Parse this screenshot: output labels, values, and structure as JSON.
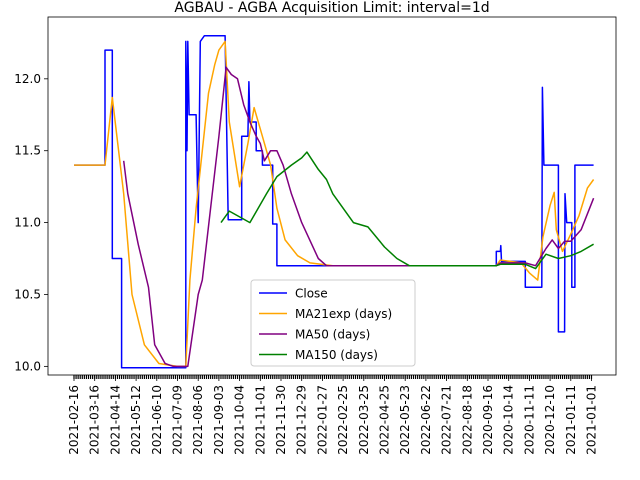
{
  "chart_data": {
    "type": "line",
    "title": "AGBAU - AGBA Acquisition Limit: interval=1d",
    "xlabel": "",
    "ylabel": "",
    "ylim": [
      9.94,
      12.43
    ],
    "y_ticks": [
      10.0,
      10.5,
      11.0,
      11.5,
      12.0
    ],
    "y_tick_labels": [
      "10.0",
      "10.5",
      "11.0",
      "11.5",
      "12.0"
    ],
    "x_tick_labels": [
      "2021-02-16",
      "2021-03-16",
      "2021-04-14",
      "2021-05-12",
      "2021-06-10",
      "2021-07-09",
      "2021-08-06",
      "2021-09-03",
      "2021-10-04",
      "2021-11-01",
      "2021-11-30",
      "2021-12-29",
      "2022-01-27",
      "2022-02-25",
      "2022-03-25",
      "2022-04-25",
      "2022-05-23",
      "2022-06-22",
      "2022-07-21",
      "2022-08-18",
      "2020-09-16",
      "2020-10-14",
      "2020-11-11",
      "2020-12-10",
      "2021-01-11",
      "2021-01-01"
    ],
    "grid": false,
    "legend_position": "bottom-center",
    "series": [
      {
        "name": "Close",
        "color": "#0000ff",
        "points": [
          [
            0,
            11.4
          ],
          [
            1.5,
            11.4
          ],
          [
            1.5,
            12.2
          ],
          [
            1.85,
            12.2
          ],
          [
            1.85,
            10.75
          ],
          [
            2.3,
            10.75
          ],
          [
            2.3,
            9.99
          ],
          [
            5.4,
            9.99
          ],
          [
            5.4,
            12.26
          ],
          [
            5.46,
            11.5
          ],
          [
            5.5,
            12.26
          ],
          [
            5.56,
            11.75
          ],
          [
            5.9,
            11.75
          ],
          [
            6.0,
            11.0
          ],
          [
            6.1,
            12.26
          ],
          [
            6.3,
            12.3
          ],
          [
            7.3,
            12.3
          ],
          [
            7.45,
            11.02
          ],
          [
            8.1,
            11.02
          ],
          [
            8.1,
            11.6
          ],
          [
            8.4,
            11.6
          ],
          [
            8.45,
            11.98
          ],
          [
            8.5,
            11.7
          ],
          [
            8.8,
            11.7
          ],
          [
            8.8,
            11.5
          ],
          [
            9.1,
            11.5
          ],
          [
            9.1,
            11.4
          ],
          [
            9.6,
            11.4
          ],
          [
            9.6,
            10.99
          ],
          [
            9.8,
            10.99
          ],
          [
            9.8,
            10.7
          ],
          [
            20.4,
            10.7
          ],
          [
            20.4,
            10.8
          ],
          [
            20.6,
            10.8
          ],
          [
            20.62,
            10.84
          ],
          [
            20.65,
            10.73
          ],
          [
            21.8,
            10.73
          ],
          [
            21.8,
            10.55
          ],
          [
            22.6,
            10.55
          ],
          [
            22.63,
            11.94
          ],
          [
            22.7,
            11.4
          ],
          [
            23.4,
            11.4
          ],
          [
            23.4,
            10.24
          ],
          [
            23.7,
            10.24
          ],
          [
            23.72,
            11.2
          ],
          [
            23.8,
            11.0
          ],
          [
            24.05,
            11.0
          ],
          [
            24.05,
            10.55
          ],
          [
            24.2,
            10.55
          ],
          [
            24.2,
            11.4
          ],
          [
            25.1,
            11.4
          ]
        ]
      },
      {
        "name": "MA21exp (days)",
        "color": "#ffa500",
        "points": [
          [
            0,
            11.4
          ],
          [
            1.5,
            11.4
          ],
          [
            1.85,
            11.87
          ],
          [
            2.4,
            11.2
          ],
          [
            2.8,
            10.5
          ],
          [
            3.4,
            10.15
          ],
          [
            4.1,
            10.02
          ],
          [
            5.0,
            10.0
          ],
          [
            5.4,
            10.0
          ],
          [
            5.6,
            10.6
          ],
          [
            5.9,
            11.1
          ],
          [
            6.2,
            11.5
          ],
          [
            6.5,
            11.9
          ],
          [
            6.8,
            12.1
          ],
          [
            7.0,
            12.2
          ],
          [
            7.3,
            12.26
          ],
          [
            7.5,
            11.7
          ],
          [
            8.0,
            11.25
          ],
          [
            8.4,
            11.55
          ],
          [
            8.7,
            11.8
          ],
          [
            9.1,
            11.6
          ],
          [
            9.5,
            11.4
          ],
          [
            9.8,
            11.1
          ],
          [
            10.2,
            10.88
          ],
          [
            10.8,
            10.77
          ],
          [
            11.4,
            10.72
          ],
          [
            12.5,
            10.7
          ],
          [
            20.4,
            10.7
          ],
          [
            20.6,
            10.74
          ],
          [
            21.6,
            10.72
          ],
          [
            22.0,
            10.65
          ],
          [
            22.4,
            10.6
          ],
          [
            22.65,
            10.9
          ],
          [
            23.0,
            11.12
          ],
          [
            23.2,
            11.21
          ],
          [
            23.3,
            10.95
          ],
          [
            23.6,
            10.8
          ],
          [
            24.0,
            10.92
          ],
          [
            24.4,
            11.05
          ],
          [
            24.8,
            11.24
          ],
          [
            25.1,
            11.3
          ]
        ]
      },
      {
        "name": "MA50 (days)",
        "color": "#800080",
        "points": [
          [
            2.4,
            11.43
          ],
          [
            2.6,
            11.2
          ],
          [
            3.1,
            10.85
          ],
          [
            3.6,
            10.55
          ],
          [
            3.9,
            10.15
          ],
          [
            4.4,
            10.02
          ],
          [
            4.8,
            10.0
          ],
          [
            5.5,
            10.0
          ],
          [
            6.0,
            10.5
          ],
          [
            6.2,
            10.6
          ],
          [
            6.6,
            11.1
          ],
          [
            7.0,
            11.6
          ],
          [
            7.35,
            12.08
          ],
          [
            7.6,
            12.03
          ],
          [
            7.9,
            12.0
          ],
          [
            8.2,
            11.82
          ],
          [
            8.5,
            11.7
          ],
          [
            8.8,
            11.6
          ],
          [
            9.0,
            11.55
          ],
          [
            9.2,
            11.43
          ],
          [
            9.5,
            11.5
          ],
          [
            9.8,
            11.5
          ],
          [
            10.1,
            11.4
          ],
          [
            10.5,
            11.2
          ],
          [
            11.0,
            11.0
          ],
          [
            11.8,
            10.75
          ],
          [
            12.2,
            10.7
          ],
          [
            20.4,
            10.7
          ],
          [
            20.6,
            10.72
          ],
          [
            21.8,
            10.72
          ],
          [
            22.3,
            10.7
          ],
          [
            22.8,
            10.82
          ],
          [
            23.1,
            10.88
          ],
          [
            23.4,
            10.82
          ],
          [
            23.7,
            10.87
          ],
          [
            24.0,
            10.87
          ],
          [
            24.5,
            10.95
          ],
          [
            25.1,
            11.17
          ]
        ]
      },
      {
        "name": "MA150 (days)",
        "color": "#008000",
        "points": [
          [
            7.1,
            11.0
          ],
          [
            7.5,
            11.08
          ],
          [
            8.5,
            11.0
          ],
          [
            9.3,
            11.2
          ],
          [
            9.8,
            11.32
          ],
          [
            10.5,
            11.4
          ],
          [
            11.0,
            11.45
          ],
          [
            11.25,
            11.49
          ],
          [
            11.8,
            11.37
          ],
          [
            12.2,
            11.3
          ],
          [
            12.5,
            11.2
          ],
          [
            13.5,
            11.0
          ],
          [
            14.2,
            10.97
          ],
          [
            15.0,
            10.83
          ],
          [
            15.6,
            10.75
          ],
          [
            16.2,
            10.7
          ],
          [
            20.4,
            10.7
          ],
          [
            20.6,
            10.71
          ],
          [
            21.8,
            10.71
          ],
          [
            22.3,
            10.68
          ],
          [
            22.8,
            10.78
          ],
          [
            23.4,
            10.75
          ],
          [
            24.0,
            10.77
          ],
          [
            24.5,
            10.8
          ],
          [
            25.1,
            10.85
          ]
        ]
      }
    ]
  }
}
